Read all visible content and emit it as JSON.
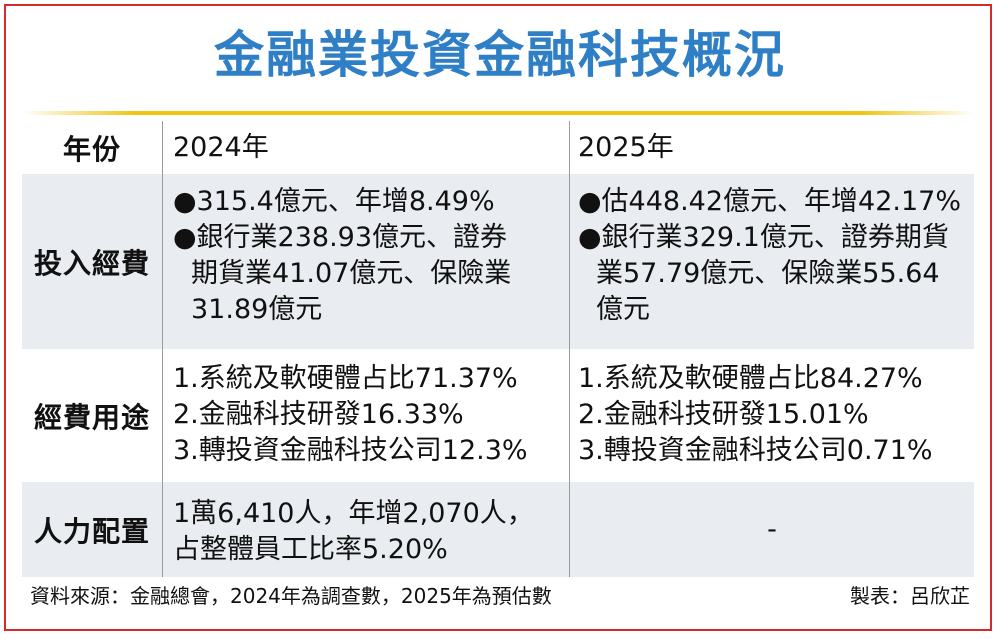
{
  "title": "金融業投資金融科技概況",
  "table": {
    "header": {
      "label": "年份",
      "col1": "2024年",
      "col2": "2025年"
    },
    "invest": {
      "label": "投入經費",
      "col1": {
        "b1": "●315.4億元、年增8.49%",
        "b2_l1": "●銀行業238.93億元、證券",
        "b2_l2": "期貨業41.07億元、保險業",
        "b2_l3": "31.89億元"
      },
      "col2": {
        "b1": "●估448.42億元、年增42.17%",
        "b2_l1": "●銀行業329.1億元、證券期貨",
        "b2_l2": "業57.79億元、保險業55.64",
        "b2_l3": "億元"
      }
    },
    "usage": {
      "label": "經費用途",
      "col1": [
        "1.系統及軟硬體占比71.37%",
        "2.金融科技研發16.33%",
        "3.轉投資金融科技公司12.3%"
      ],
      "col2": [
        "1.系統及軟硬體占比84.27%",
        "2.金融科技研發15.01%",
        "3.轉投資金融科技公司0.71%"
      ]
    },
    "staff": {
      "label": "人力配置",
      "col1": [
        "1萬6,410人，年增2,070人，",
        "占整體員工比率5.20%"
      ],
      "col2": "-"
    }
  },
  "footer": {
    "source": "資料來源：金融總會，2024年為調查數，2025年為預估數",
    "credit": "製表：呂欣芷"
  }
}
